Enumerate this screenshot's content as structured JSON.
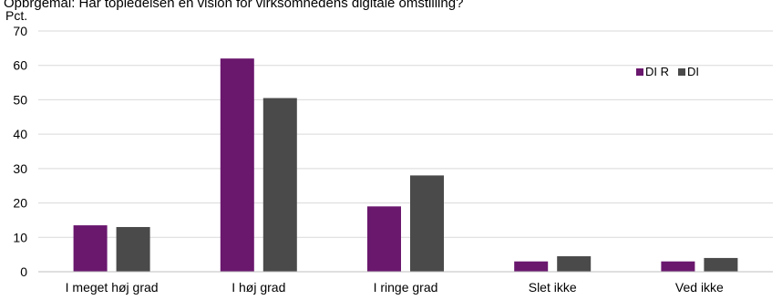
{
  "chart_data": {
    "type": "bar",
    "title": "Opbrgemål: Har topledelsen en vision for virksomhedens digitale omstilling?",
    "ylabel": "Pct.",
    "xlabel": "",
    "ylim": [
      0,
      70
    ],
    "yticks": [
      0,
      10,
      20,
      30,
      40,
      50,
      60,
      70
    ],
    "categories": [
      "I meget høj grad",
      "I høj grad",
      "I ringe grad",
      "Slet ikke",
      "Ved ikke"
    ],
    "series": [
      {
        "name": "DI R",
        "color": "#6a176e",
        "values": [
          13.5,
          62,
          19,
          3,
          3
        ]
      },
      {
        "name": "DI",
        "color": "#4a4a4a",
        "values": [
          13,
          50.5,
          28,
          4.5,
          4
        ]
      }
    ],
    "grid": true,
    "legend_position": "top-right"
  }
}
